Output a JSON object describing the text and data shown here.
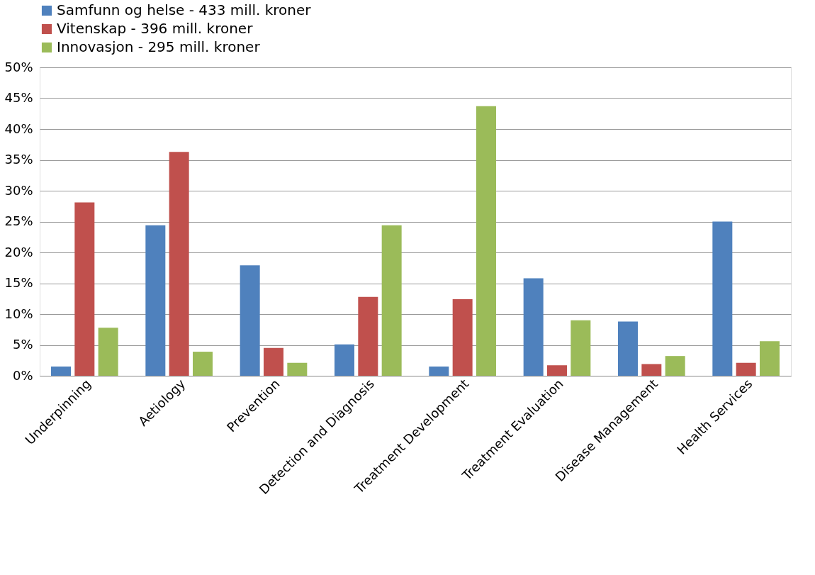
{
  "chart_data": {
    "type": "bar",
    "categories": [
      "Underpinning",
      "Aetiology",
      "Prevention",
      "Detection and Diagnosis",
      "Treatment Development",
      "Treatment Evaluation",
      "Disease Management",
      "Health Services"
    ],
    "series": [
      {
        "name": "Samfunn og helse - 433 mill. kroner",
        "color": "#4f81bd",
        "values": [
          1.5,
          24.4,
          17.9,
          5.1,
          1.5,
          15.8,
          8.8,
          25.0
        ]
      },
      {
        "name": "Vitenskap - 396 mill. kroner",
        "color": "#c0504d",
        "values": [
          28.1,
          36.3,
          4.5,
          12.8,
          12.4,
          1.7,
          1.9,
          2.1
        ]
      },
      {
        "name": "Innovasjon - 295 mill. kroner",
        "color": "#9bbb59",
        "values": [
          7.8,
          3.9,
          2.1,
          24.4,
          43.7,
          9.0,
          3.2,
          5.6
        ]
      }
    ],
    "ylim": [
      0,
      50
    ],
    "yticks": [
      {
        "value": 0,
        "label": "0%"
      },
      {
        "value": 5,
        "label": "5%"
      },
      {
        "value": 10,
        "label": "10%"
      },
      {
        "value": 15,
        "label": "15%"
      },
      {
        "value": 20,
        "label": "20%"
      },
      {
        "value": 25,
        "label": "25%"
      },
      {
        "value": 30,
        "label": "30%"
      },
      {
        "value": 35,
        "label": "35%"
      },
      {
        "value": 40,
        "label": "40%"
      },
      {
        "value": 45,
        "label": "45%"
      },
      {
        "value": 50,
        "label": "50%"
      }
    ],
    "grid": "y",
    "legend": "top"
  }
}
